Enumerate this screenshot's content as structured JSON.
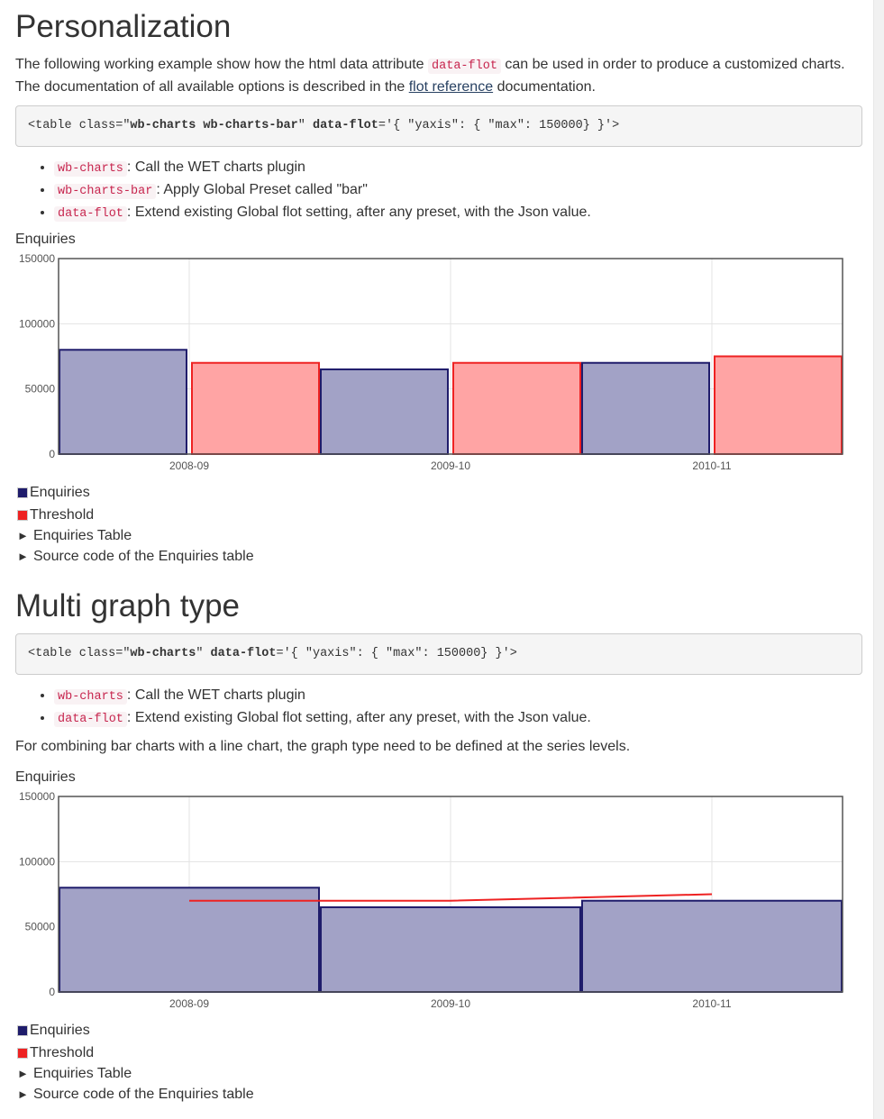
{
  "colors": {
    "series1": "#1f1c6b",
    "series1_fill": "#a2a2c6",
    "series2": "#ee2222",
    "series2_fill": "#ffa4a4",
    "code_text": "#c7254e",
    "link": "#284162"
  },
  "section1": {
    "heading": "Personalization",
    "intro_a": "The following working example show how the html data attribute",
    "intro_code": "data-flot",
    "intro_b": "can be used in order to produce a customized charts.",
    "intro_c": "The documentation of all available options is described in the",
    "intro_link": "flot reference",
    "intro_d": "documentation.",
    "code": {
      "p1": "<table class=\"",
      "p2": "wb-charts wb-charts-bar",
      "p3": "\" ",
      "p4": "data-flot",
      "p5": "='{ \"yaxis\": { \"max\": 150000} }'>"
    },
    "bullets": [
      {
        "code": "wb-charts",
        "text": ": Call the WET charts plugin"
      },
      {
        "code": "wb-charts-bar",
        "text": ": Apply Global Preset called \"bar\""
      },
      {
        "code": "data-flot",
        "text": ": Extend existing Global flot setting, after any preset, with the Json value."
      }
    ],
    "chart_title": "Enquiries",
    "legend": {
      "series1": "Enquiries",
      "series2": "Threshold"
    },
    "details": [
      "Enquiries Table",
      "Source code of the Enquiries table"
    ]
  },
  "section2": {
    "heading": "Multi graph type",
    "code": {
      "p1": "<table class=\"",
      "p2": "wb-charts",
      "p3": "\" ",
      "p4": "data-flot",
      "p5": "='{ \"yaxis\": { \"max\": 150000} }'>"
    },
    "bullets": [
      {
        "code": "wb-charts",
        "text": ": Call the WET charts plugin"
      },
      {
        "code": "data-flot",
        "text": ": Extend existing Global flot setting, after any preset, with the Json value."
      }
    ],
    "note": "For combining bar charts with a line chart, the graph type need to be defined at the series levels.",
    "chart_title": "Enquiries",
    "legend": {
      "series1": "Enquiries",
      "series2": "Threshold"
    },
    "details": [
      "Enquiries Table",
      "Source code of the Enquiries table"
    ]
  },
  "chart_data": [
    {
      "type": "bar",
      "title": "Enquiries",
      "categories": [
        "2008-09",
        "2009-10",
        "2010-11"
      ],
      "ylim": [
        0,
        150000
      ],
      "yticks": [
        0,
        50000,
        100000,
        150000
      ],
      "grid": true,
      "legend_position": "below",
      "series": [
        {
          "name": "Enquiries",
          "values": [
            80000,
            65000,
            70000
          ]
        },
        {
          "name": "Threshold",
          "values": [
            70000,
            70000,
            75000
          ]
        }
      ]
    },
    {
      "type": "bar",
      "title": "Enquiries",
      "categories": [
        "2008-09",
        "2009-10",
        "2010-11"
      ],
      "ylim": [
        0,
        150000
      ],
      "yticks": [
        0,
        50000,
        100000,
        150000
      ],
      "grid": true,
      "legend_position": "below",
      "series": [
        {
          "name": "Enquiries",
          "type": "bar",
          "values": [
            80000,
            65000,
            70000
          ]
        },
        {
          "name": "Threshold",
          "type": "line",
          "values": [
            70000,
            70000,
            75000
          ]
        }
      ]
    }
  ]
}
